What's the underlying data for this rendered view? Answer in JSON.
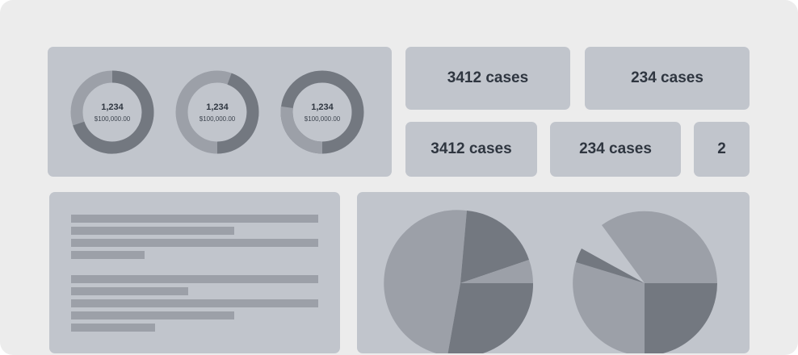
{
  "donuts": [
    {
      "value": "1,234",
      "amount": "$100,000.00"
    },
    {
      "value": "1,234",
      "amount": "$100,000.00"
    },
    {
      "value": "1,234",
      "amount": "$100,000.00"
    }
  ],
  "stats": {
    "top_left": "3412 cases",
    "top_right": "234 cases",
    "bottom_left": "3412 cases",
    "bottom_mid": "234 cases",
    "bottom_right": "2"
  },
  "colors": {
    "background": "#ececec",
    "panel": "#c1c5cc",
    "slice_light": "#9ca0a8",
    "slice_dark": "#737880",
    "text": "#2f3640"
  }
}
